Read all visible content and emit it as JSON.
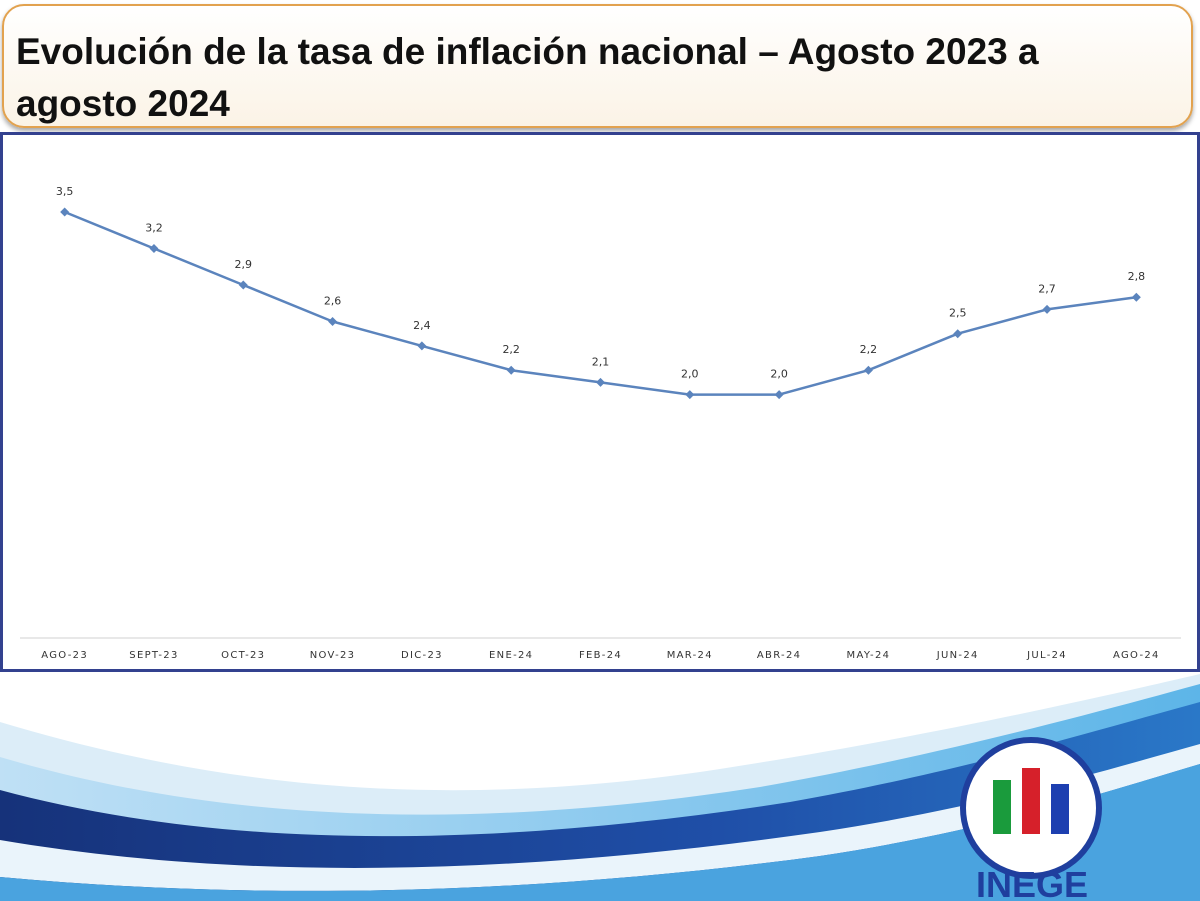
{
  "title": "Evolución de la tasa de inflación nacional – Agosto 2023 a agosto 2024",
  "logo": {
    "text": "INEGE",
    "colors": [
      "#1a9b3c",
      "#d6202a",
      "#1d3fb0"
    ]
  },
  "colors": {
    "series": "#5b84bd",
    "frame": "#33418f",
    "title_border": "#e2a24f"
  },
  "chart_data": {
    "type": "line",
    "categories": [
      "AGO-23",
      "SEPT-23",
      "OCT-23",
      "NOV-23",
      "DIC-23",
      "ENE-24",
      "FEB-24",
      "MAR-24",
      "ABR-24",
      "MAY-24",
      "JUN-24",
      "JUL-24",
      "AGO-24"
    ],
    "series": [
      {
        "values": [
          3.5,
          3.2,
          2.9,
          2.6,
          2.4,
          2.2,
          2.1,
          2.0,
          2.0,
          2.2,
          2.5,
          2.7,
          2.8
        ],
        "labels": [
          "3,5",
          "3,2",
          "2,9",
          "2,6",
          "2,4",
          "2,2",
          "2,1",
          "2,0",
          "2,0",
          "2,2",
          "2,5",
          "2,7",
          "2,8"
        ]
      }
    ],
    "ylim": [
      0,
      3.5
    ],
    "grid": false,
    "legend": "none",
    "marker": "diamond"
  }
}
